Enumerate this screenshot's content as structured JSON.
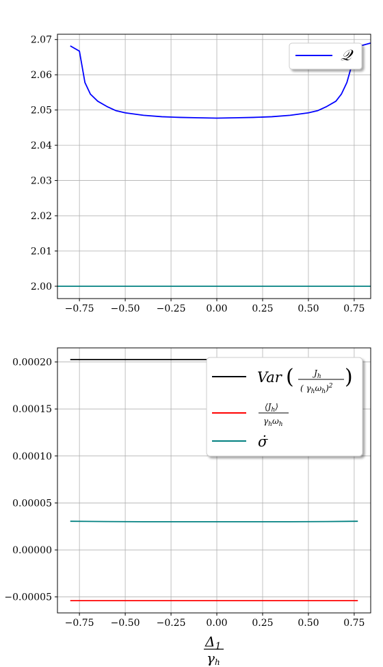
{
  "chart_data": [
    {
      "type": "line",
      "title": "",
      "xlabel": "",
      "ylabel": "",
      "xlim": [
        -0.87,
        0.84
      ],
      "ylim": [
        1.9965,
        2.0715
      ],
      "xticks": [
        -0.75,
        -0.5,
        -0.25,
        0.0,
        0.25,
        0.5,
        0.75
      ],
      "xtick_labels": [
        "−0.75",
        "−0.50",
        "−0.25",
        "0.00",
        "0.25",
        "0.50",
        "0.75"
      ],
      "yticks": [
        2.0,
        2.01,
        2.02,
        2.03,
        2.04,
        2.05,
        2.06,
        2.07
      ],
      "ytick_labels": [
        "2.00",
        "2.01",
        "2.02",
        "2.03",
        "2.04",
        "2.05",
        "2.06",
        "2.07"
      ],
      "grid": true,
      "legend_position": "top-right",
      "series": [
        {
          "name": "𝒬",
          "color": "#0000ff",
          "x": [
            -0.8,
            -0.75,
            -0.72,
            -0.69,
            -0.65,
            -0.6,
            -0.55,
            -0.5,
            -0.4,
            -0.3,
            -0.2,
            -0.1,
            0.0,
            0.1,
            0.2,
            0.3,
            0.4,
            0.5,
            0.55,
            0.6,
            0.65,
            0.68,
            0.71,
            0.73,
            0.75,
            0.77,
            0.84
          ],
          "y": [
            2.0682,
            2.0667,
            2.0578,
            2.0545,
            2.0525,
            2.051,
            2.0498,
            2.0492,
            2.0485,
            2.0481,
            2.0479,
            2.0478,
            2.0477,
            2.0478,
            2.0479,
            2.0481,
            2.0485,
            2.0492,
            2.0498,
            2.051,
            2.0525,
            2.0545,
            2.0578,
            2.0615,
            2.0655,
            2.068,
            2.069
          ]
        },
        {
          "name": "",
          "color": "#008080",
          "x": [
            -0.87,
            0.84
          ],
          "y": [
            2.0,
            2.0
          ]
        }
      ]
    },
    {
      "type": "line",
      "title": "",
      "xlabel": "Δ1 / γh",
      "ylabel": "",
      "xlim": [
        -0.87,
        0.84
      ],
      "ylim": [
        -6.7e-05,
        0.000215
      ],
      "xticks": [
        -0.75,
        -0.5,
        -0.25,
        0.0,
        0.25,
        0.5,
        0.75
      ],
      "xtick_labels": [
        "−0.75",
        "−0.50",
        "−0.25",
        "0.00",
        "0.25",
        "0.50",
        "0.75"
      ],
      "yticks": [
        -5e-05,
        0.0,
        5e-05,
        0.0001,
        0.00015,
        0.0002
      ],
      "ytick_labels": [
        "−0.00005",
        "0.00000",
        "0.00005",
        "0.00010",
        "0.00015",
        "0.00020"
      ],
      "grid": true,
      "legend_position": "top-right",
      "series": [
        {
          "name": "Var(Jh/(γhωh)²)",
          "color": "#000000",
          "x": [
            -0.8,
            0.77
          ],
          "y": [
            0.0002025,
            0.0002025
          ]
        },
        {
          "name": "⟨Jh⟩/γhωh",
          "color": "#ff0000",
          "x": [
            -0.8,
            0.77
          ],
          "y": [
            -5.4e-05,
            -5.4e-05
          ]
        },
        {
          "name": "σ̇",
          "color": "#008080",
          "x": [
            -0.8,
            -0.6,
            -0.4,
            -0.2,
            0.0,
            0.2,
            0.4,
            0.6,
            0.77
          ],
          "y": [
            3.05e-05,
            3.02e-05,
            3e-05,
            3e-05,
            3e-05,
            3e-05,
            3e-05,
            3.02e-05,
            3.05e-05
          ]
        }
      ]
    }
  ]
}
